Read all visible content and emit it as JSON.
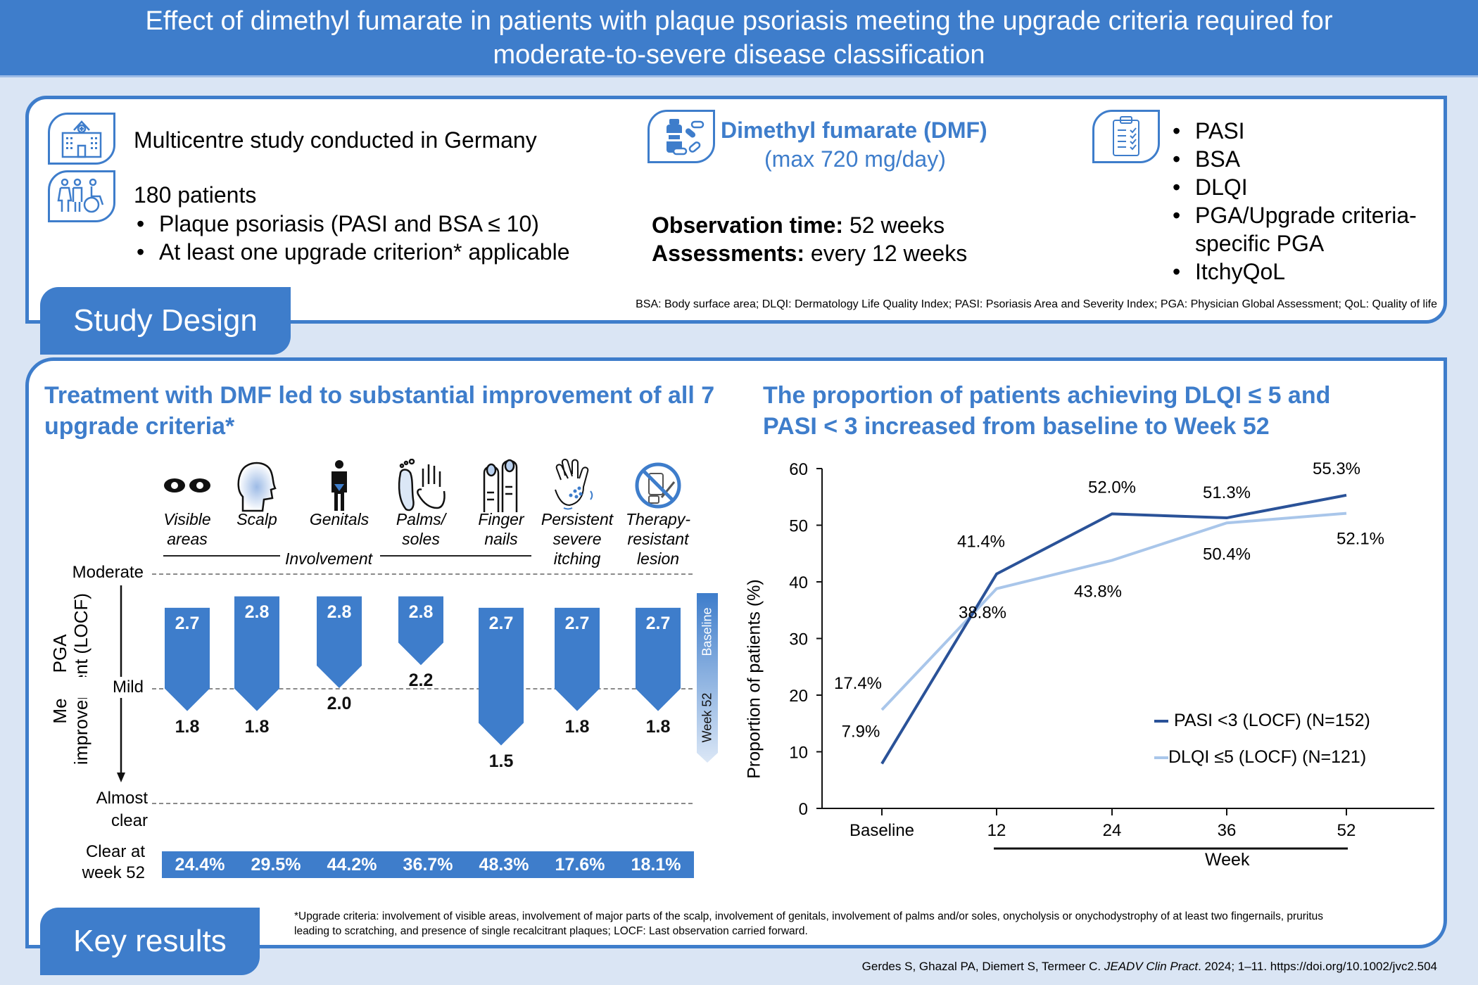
{
  "header": {
    "title_line1": "Effect of dimethyl fumarate in patients with plaque psoriasis meeting the upgrade criteria required for",
    "title_line2": "moderate-to-severe disease classification"
  },
  "study_design": {
    "tab_label": "Study Design",
    "study_text": "Multicentre study conducted in Germany",
    "patients_text": "180 patients",
    "patient_bullets": [
      "Plaque psoriasis (PASI and BSA ≤ 10)",
      "At least one upgrade criterion* applicable"
    ],
    "drug_name": "Dimethyl fumarate (DMF)",
    "drug_dose": "(max 720 mg/day)",
    "observation_label": "Observation time:",
    "observation_value": " 52 weeks",
    "assessments_label": "Assessments:",
    "assessments_value": " every 12 weeks",
    "endpoints": [
      "PASI",
      "BSA",
      "DLQI",
      "PGA/Upgrade criteria-",
      "specific PGA",
      "ItchyQoL"
    ],
    "abbreviations": "BSA: Body surface area; DLQI: Dermatology Life Quality Index; PASI: Psoriasis Area and Severity Index; PGA: Physician Global Assessment; QoL: Quality of life",
    "icons": [
      "hospital-icon",
      "patients-icon",
      "pill-bottle-icon",
      "clipboard-icon"
    ]
  },
  "key_results": {
    "tab_label": "Key results",
    "footnote_line1": "*Upgrade criteria: involvement of visible areas, involvement of major parts of the scalp, involvement of genitals, involvement of palms and/or soles, onycholysis or onychodystrophy of at least two fingernails, pruritus",
    "footnote_line2": "leading to scratching, and presence of single recalcitrant plaques; LOCF: Last observation carried forward."
  },
  "citation": {
    "authors": "Gerdes S, Ghazal PA, Diemert S, Termeer C. ",
    "journal": "JEADV Clin Pract",
    "rest": ". 2024; 1–11. https://doi.org/10.1002/jvc2.504"
  },
  "chart_data": [
    {
      "type": "bar",
      "title": "Treatment with DMF led to substantial improvement of all 7 upgrade criteria*",
      "ylabel": "Mean PGA improvement (LOCF)",
      "levels": [
        {
          "label": "Moderate",
          "value": 3
        },
        {
          "label": "Mild",
          "value": 2
        },
        {
          "label": "Almost clear",
          "value": 1
        }
      ],
      "group_label": "Involvement",
      "categories": [
        "Visible areas",
        "Scalp",
        "Genitals",
        "Palms/ soles",
        "Finger nails",
        "Persistent severe itching",
        "Therapy- resistant lesion"
      ],
      "category_lines": [
        [
          "Visible",
          "areas"
        ],
        [
          "Scalp"
        ],
        [
          "Genitals"
        ],
        [
          "Palms/",
          "soles"
        ],
        [
          "Finger",
          "nails"
        ],
        [
          "Persistent",
          "severe",
          "itching"
        ],
        [
          "Therapy-",
          "resistant",
          "lesion"
        ]
      ],
      "category_icons": [
        "eyes-icon",
        "scalp-icon",
        "genitals-icon",
        "palms-soles-icon",
        "fingernails-icon",
        "itching-hand-icon",
        "no-therapy-icon"
      ],
      "series": [
        {
          "name": "Baseline",
          "values": [
            2.7,
            2.8,
            2.8,
            2.8,
            2.7,
            2.7,
            2.7
          ]
        },
        {
          "name": "Week 52",
          "values": [
            1.8,
            1.8,
            2.0,
            2.2,
            1.5,
            1.8,
            1.8
          ]
        }
      ],
      "legend": {
        "start": "Baseline",
        "end": "Week 52"
      },
      "clear_label": "Clear at week 52",
      "clear_label_lines": [
        "Clear at",
        "week 52"
      ],
      "clear_values": [
        "24.4%",
        "29.5%",
        "44.2%",
        "36.7%",
        "48.3%",
        "17.6%",
        "18.1%"
      ],
      "color": "#3e7dcb"
    },
    {
      "type": "line",
      "title": "The proportion of patients achieving DLQI ≤ 5 and PASI < 3 increased from baseline to Week 52",
      "title_lines": [
        "The proportion of patients achieving DLQI ≤ 5 and",
        "PASI < 3 increased from baseline to Week 52"
      ],
      "xlabel": "Week",
      "ylabel": "Proportion of patients (%)",
      "x": [
        "Baseline",
        "12",
        "24",
        "36",
        "52"
      ],
      "ylim": [
        0,
        60
      ],
      "yticks": [
        0,
        10,
        20,
        30,
        40,
        50,
        60
      ],
      "series": [
        {
          "name": "PASI <3 (LOCF) (N=152)",
          "values": [
            7.9,
            41.4,
            52.0,
            51.3,
            55.3
          ],
          "labels": [
            "7.9%",
            "41.4%",
            "52.0%",
            "51.3%",
            "55.3%"
          ],
          "color": "#2a5298"
        },
        {
          "name": "DLQI ≤5 (LOCF) (N=121)",
          "values": [
            17.4,
            38.8,
            43.8,
            50.4,
            52.1
          ],
          "labels": [
            "17.4%",
            "38.8%",
            "43.8%",
            "50.4%",
            "52.1%"
          ],
          "color": "#a9c6ea"
        }
      ],
      "legend_position": "center-right",
      "grid": false
    }
  ]
}
